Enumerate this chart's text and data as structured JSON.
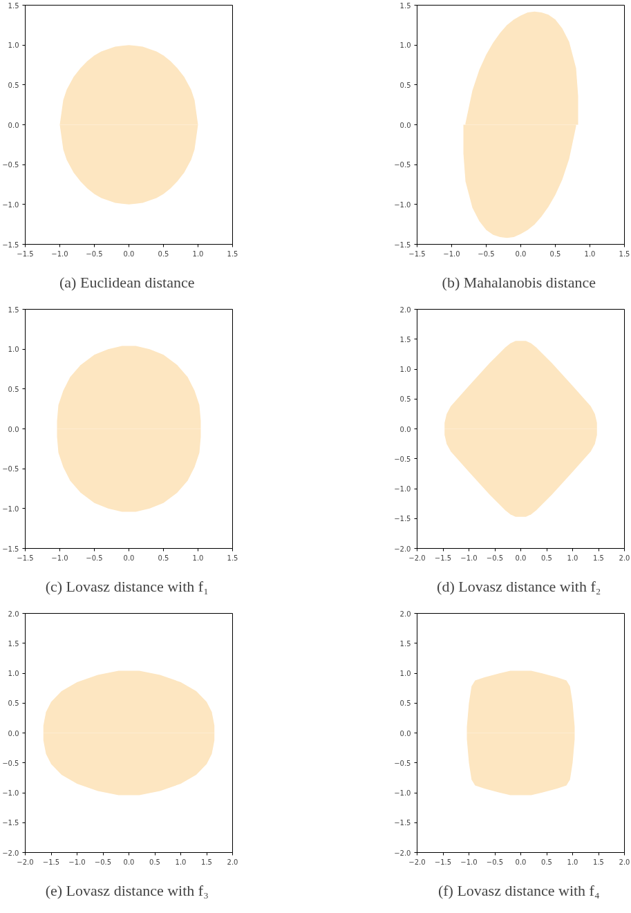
{
  "chart_data": [
    {
      "type": "area",
      "title": "(a)  Euclidean distance",
      "xlim": [
        -1.5,
        1.5
      ],
      "ylim": [
        -1.5,
        1.5
      ],
      "xticks": [
        {
          "value": -1.5,
          "label": "−1.5"
        },
        {
          "value": -1.0,
          "label": "−1.0"
        },
        {
          "value": -0.5,
          "label": "−0.5"
        },
        {
          "value": 0,
          "label": "0.0"
        },
        {
          "value": 0.5,
          "label": "0.5"
        },
        {
          "value": 1.0,
          "label": "1.0"
        },
        {
          "value": 1.5,
          "label": "1.5"
        }
      ],
      "yticks": [
        {
          "value": -1.5,
          "label": "−1.5"
        },
        {
          "value": -1.0,
          "label": "−1.0"
        },
        {
          "value": -0.5,
          "label": "−0.5"
        },
        {
          "value": 0,
          "label": "0.0"
        },
        {
          "value": 0.5,
          "label": "0.5"
        },
        {
          "value": 1.0,
          "label": "1.0"
        },
        {
          "value": 1.5,
          "label": "1.5"
        }
      ],
      "series": [
        {
          "color": "#fde6c1",
          "x": [
            -1,
            -0.95,
            -0.9,
            -0.8,
            -0.7,
            -0.6,
            -0.5,
            -0.4,
            -0.3,
            -0.2,
            -0.1,
            0,
            0.1,
            0.2,
            0.3,
            0.4,
            0.5,
            0.6,
            0.7,
            0.8,
            0.9,
            0.95,
            1
          ],
          "values": [
            0,
            0.31,
            0.44,
            0.6,
            0.71,
            0.8,
            0.87,
            0.92,
            0.95,
            0.98,
            0.99,
            1,
            0.99,
            0.98,
            0.95,
            0.92,
            0.87,
            0.8,
            0.71,
            0.6,
            0.44,
            0.31,
            0
          ]
        },
        {
          "color": "#fde6c1",
          "x": [
            -1,
            -0.95,
            -0.9,
            -0.8,
            -0.7,
            -0.6,
            -0.5,
            -0.4,
            -0.3,
            -0.2,
            -0.1,
            0,
            0.1,
            0.2,
            0.3,
            0.4,
            0.5,
            0.6,
            0.7,
            0.8,
            0.9,
            0.95,
            1
          ],
          "values": [
            0,
            -0.31,
            -0.44,
            -0.6,
            -0.71,
            -0.8,
            -0.87,
            -0.92,
            -0.95,
            -0.98,
            -0.99,
            -1,
            -0.99,
            -0.98,
            -0.95,
            -0.92,
            -0.87,
            -0.8,
            -0.71,
            -0.6,
            -0.44,
            -0.31,
            0
          ]
        }
      ]
    },
    {
      "type": "area",
      "title": "(b)  Mahalanobis distance",
      "xlim": [
        -1.5,
        1.5
      ],
      "ylim": [
        -1.5,
        1.5
      ],
      "xticks": [
        {
          "value": -1.5,
          "label": "−1.5"
        },
        {
          "value": -1.0,
          "label": "−1.0"
        },
        {
          "value": -0.5,
          "label": "−0.5"
        },
        {
          "value": 0,
          "label": "0.0"
        },
        {
          "value": 0.5,
          "label": "0.5"
        },
        {
          "value": 1.0,
          "label": "1.0"
        },
        {
          "value": 1.5,
          "label": "1.5"
        }
      ],
      "yticks": [
        {
          "value": -1.5,
          "label": "−1.5"
        },
        {
          "value": -1.0,
          "label": "−1.0"
        },
        {
          "value": -0.5,
          "label": "−0.5"
        },
        {
          "value": 0,
          "label": "0.0"
        },
        {
          "value": 0.5,
          "label": "0.5"
        },
        {
          "value": 1.0,
          "label": "1.0"
        },
        {
          "value": 1.5,
          "label": "1.5"
        }
      ],
      "series": [
        {
          "color": "#fde6c1",
          "x": [
            -0.8,
            -0.7,
            -0.6,
            -0.5,
            -0.4,
            -0.3,
            -0.2,
            -0.1,
            0,
            0.1,
            0.2,
            0.3,
            0.4,
            0.5,
            0.6,
            0.7,
            0.8,
            0.83
          ],
          "values": [
            0.02,
            0.43,
            0.69,
            0.88,
            1.03,
            1.15,
            1.25,
            1.32,
            1.37,
            1.41,
            1.42,
            1.41,
            1.38,
            1.32,
            1.21,
            1.04,
            0.71,
            0.36
          ]
        },
        {
          "color": "#fde6c1",
          "x": [
            -0.83,
            -0.8,
            -0.7,
            -0.6,
            -0.5,
            -0.4,
            -0.3,
            -0.2,
            -0.1,
            0,
            0.1,
            0.2,
            0.3,
            0.4,
            0.5,
            0.6,
            0.7,
            0.8
          ],
          "values": [
            -0.36,
            -0.71,
            -1.04,
            -1.21,
            -1.32,
            -1.38,
            -1.41,
            -1.42,
            -1.41,
            -1.37,
            -1.32,
            -1.25,
            -1.15,
            -1.03,
            -0.88,
            -0.69,
            -0.43,
            -0.02
          ]
        }
      ]
    },
    {
      "type": "area",
      "title": "(c)  Lovasz distance with f₁",
      "xlim": [
        -1.5,
        1.5
      ],
      "ylim": [
        -1.5,
        1.5
      ],
      "xticks": [
        {
          "value": -1.5,
          "label": "−1.5"
        },
        {
          "value": -1.0,
          "label": "−1.0"
        },
        {
          "value": -0.5,
          "label": "−0.5"
        },
        {
          "value": 0,
          "label": "0.0"
        },
        {
          "value": 0.5,
          "label": "0.5"
        },
        {
          "value": 1.0,
          "label": "1.0"
        },
        {
          "value": 1.5,
          "label": "1.5"
        }
      ],
      "yticks": [
        {
          "value": -1.5,
          "label": "−1.5"
        },
        {
          "value": -1.0,
          "label": "−1.0"
        },
        {
          "value": -0.5,
          "label": "−0.5"
        },
        {
          "value": 0,
          "label": "0.0"
        },
        {
          "value": 0.5,
          "label": "0.5"
        },
        {
          "value": 1.0,
          "label": "1.0"
        },
        {
          "value": 1.5,
          "label": "1.5"
        }
      ],
      "series": [
        {
          "color": "#fde6c1",
          "x": [
            -1.04,
            -1.02,
            -0.95,
            -0.85,
            -0.7,
            -0.5,
            -0.3,
            -0.1,
            0.1,
            0.3,
            0.5,
            0.7,
            0.85,
            0.95,
            1.02,
            1.04
          ],
          "values": [
            0.1,
            0.3,
            0.48,
            0.65,
            0.8,
            0.93,
            1.0,
            1.04,
            1.04,
            1.0,
            0.93,
            0.8,
            0.65,
            0.48,
            0.3,
            0.1
          ]
        },
        {
          "color": "#fde6c1",
          "x": [
            -1.04,
            -1.02,
            -0.95,
            -0.85,
            -0.7,
            -0.5,
            -0.3,
            -0.1,
            0.1,
            0.3,
            0.5,
            0.7,
            0.85,
            0.95,
            1.02,
            1.04
          ],
          "values": [
            -0.1,
            -0.3,
            -0.48,
            -0.65,
            -0.8,
            -0.93,
            -1.0,
            -1.04,
            -1.04,
            -1.0,
            -0.93,
            -0.8,
            -0.65,
            -0.48,
            -0.3,
            -0.1
          ]
        }
      ]
    },
    {
      "type": "area",
      "title": "(d)  Lovasz distance with f₂",
      "xlim": [
        -2,
        2
      ],
      "ylim": [
        -2,
        2
      ],
      "xticks": [
        {
          "value": -2,
          "label": "−2.0"
        },
        {
          "value": -1.5,
          "label": "−1.5"
        },
        {
          "value": -1.0,
          "label": "−1.0"
        },
        {
          "value": -0.5,
          "label": "−0.5"
        },
        {
          "value": 0,
          "label": "0.0"
        },
        {
          "value": 0.5,
          "label": "0.5"
        },
        {
          "value": 1.0,
          "label": "1.0"
        },
        {
          "value": 1.5,
          "label": "1.5"
        },
        {
          "value": 2,
          "label": "2.0"
        }
      ],
      "yticks": [
        {
          "value": -2,
          "label": "−2.0"
        },
        {
          "value": -1.5,
          "label": "−1.5"
        },
        {
          "value": -1.0,
          "label": "−1.0"
        },
        {
          "value": -0.5,
          "label": "−0.5"
        },
        {
          "value": 0,
          "label": "0.0"
        },
        {
          "value": 0.5,
          "label": "0.5"
        },
        {
          "value": 1.0,
          "label": "1.0"
        },
        {
          "value": 1.5,
          "label": "1.5"
        },
        {
          "value": 2,
          "label": "2.0"
        }
      ],
      "series": [
        {
          "color": "#fde6c1",
          "x": [
            -1.47,
            -1.43,
            -1.35,
            -1.0,
            -0.6,
            -0.3,
            -0.2,
            -0.1,
            0.1,
            0.2,
            0.3,
            0.6,
            1.0,
            1.35,
            1.43,
            1.47
          ],
          "values": [
            0.1,
            0.25,
            0.38,
            0.72,
            1.1,
            1.36,
            1.43,
            1.47,
            1.47,
            1.43,
            1.36,
            1.1,
            0.72,
            0.38,
            0.25,
            0.1
          ]
        },
        {
          "color": "#fde6c1",
          "x": [
            -1.47,
            -1.43,
            -1.35,
            -1.0,
            -0.6,
            -0.3,
            -0.2,
            -0.1,
            0.1,
            0.2,
            0.3,
            0.6,
            1.0,
            1.35,
            1.43,
            1.47
          ],
          "values": [
            -0.1,
            -0.25,
            -0.38,
            -0.72,
            -1.1,
            -1.36,
            -1.43,
            -1.47,
            -1.47,
            -1.43,
            -1.36,
            -1.1,
            -0.72,
            -0.38,
            -0.25,
            -0.1
          ]
        }
      ]
    },
    {
      "type": "area",
      "title": "(e)  Lovasz distance with f₃",
      "xlim": [
        -2,
        2
      ],
      "ylim": [
        -2,
        2
      ],
      "xticks": [
        {
          "value": -2,
          "label": "−2.0"
        },
        {
          "value": -1.5,
          "label": "−1.5"
        },
        {
          "value": -1.0,
          "label": "−1.0"
        },
        {
          "value": -0.5,
          "label": "−0.5"
        },
        {
          "value": 0,
          "label": "0.0"
        },
        {
          "value": 0.5,
          "label": "0.5"
        },
        {
          "value": 1.0,
          "label": "1.0"
        },
        {
          "value": 1.5,
          "label": "1.5"
        },
        {
          "value": 2,
          "label": "2.0"
        }
      ],
      "yticks": [
        {
          "value": -2,
          "label": "−2.0"
        },
        {
          "value": -1.5,
          "label": "−1.5"
        },
        {
          "value": -1.0,
          "label": "−1.0"
        },
        {
          "value": -0.5,
          "label": "−0.5"
        },
        {
          "value": 0,
          "label": "0.0"
        },
        {
          "value": 0.5,
          "label": "0.5"
        },
        {
          "value": 1.0,
          "label": "1.0"
        },
        {
          "value": 1.5,
          "label": "1.5"
        },
        {
          "value": 2,
          "label": "2.0"
        }
      ],
      "series": [
        {
          "color": "#fde6c1",
          "x": [
            -1.65,
            -1.6,
            -1.5,
            -1.3,
            -1.0,
            -0.6,
            -0.2,
            0.2,
            0.6,
            1.0,
            1.3,
            1.5,
            1.6,
            1.65
          ],
          "values": [
            0.12,
            0.35,
            0.52,
            0.7,
            0.85,
            0.97,
            1.04,
            1.04,
            0.97,
            0.85,
            0.7,
            0.52,
            0.35,
            0.12
          ]
        },
        {
          "color": "#fde6c1",
          "x": [
            -1.65,
            -1.6,
            -1.5,
            -1.3,
            -1.0,
            -0.6,
            -0.2,
            0.2,
            0.6,
            1.0,
            1.3,
            1.5,
            1.6,
            1.65
          ],
          "values": [
            -0.12,
            -0.35,
            -0.52,
            -0.7,
            -0.85,
            -0.97,
            -1.04,
            -1.04,
            -0.97,
            -0.85,
            -0.7,
            -0.52,
            -0.35,
            -0.12
          ]
        }
      ]
    },
    {
      "type": "area",
      "title": "(f)  Lovasz distance with f₄",
      "xlim": [
        -2,
        2
      ],
      "ylim": [
        -2,
        2
      ],
      "xticks": [
        {
          "value": -2,
          "label": "−2.0"
        },
        {
          "value": -1.5,
          "label": "−1.5"
        },
        {
          "value": -1.0,
          "label": "−1.0"
        },
        {
          "value": -0.5,
          "label": "−0.5"
        },
        {
          "value": 0,
          "label": "0.0"
        },
        {
          "value": 0.5,
          "label": "0.5"
        },
        {
          "value": 1.0,
          "label": "1.0"
        },
        {
          "value": 1.5,
          "label": "1.5"
        },
        {
          "value": 2,
          "label": "2.0"
        }
      ],
      "yticks": [
        {
          "value": -2,
          "label": "−2.0"
        },
        {
          "value": -1.5,
          "label": "−1.5"
        },
        {
          "value": -1.0,
          "label": "−1.0"
        },
        {
          "value": -0.5,
          "label": "−0.5"
        },
        {
          "value": 0,
          "label": "0.0"
        },
        {
          "value": 0.5,
          "label": "0.5"
        },
        {
          "value": 1.0,
          "label": "1.0"
        },
        {
          "value": 1.5,
          "label": "1.5"
        },
        {
          "value": 2,
          "label": "2.0"
        }
      ],
      "series": [
        {
          "color": "#fde6c1",
          "x": [
            -1.04,
            -1.0,
            -0.95,
            -0.88,
            -0.7,
            -0.4,
            -0.2,
            0,
            0.2,
            0.4,
            0.7,
            0.88,
            0.95,
            1.0,
            1.04
          ],
          "values": [
            0.1,
            0.5,
            0.78,
            0.88,
            0.93,
            1.0,
            1.04,
            1.04,
            1.04,
            1.0,
            0.93,
            0.88,
            0.78,
            0.5,
            0.1
          ]
        },
        {
          "color": "#fde6c1",
          "x": [
            -1.04,
            -1.0,
            -0.95,
            -0.88,
            -0.7,
            -0.4,
            -0.2,
            0,
            0.2,
            0.4,
            0.7,
            0.88,
            0.95,
            1.0,
            1.04
          ],
          "values": [
            -0.1,
            -0.5,
            -0.78,
            -0.88,
            -0.93,
            -1.0,
            -1.04,
            -1.04,
            -1.04,
            -1.0,
            -0.93,
            -0.88,
            -0.78,
            -0.5,
            -0.1
          ]
        }
      ]
    }
  ]
}
